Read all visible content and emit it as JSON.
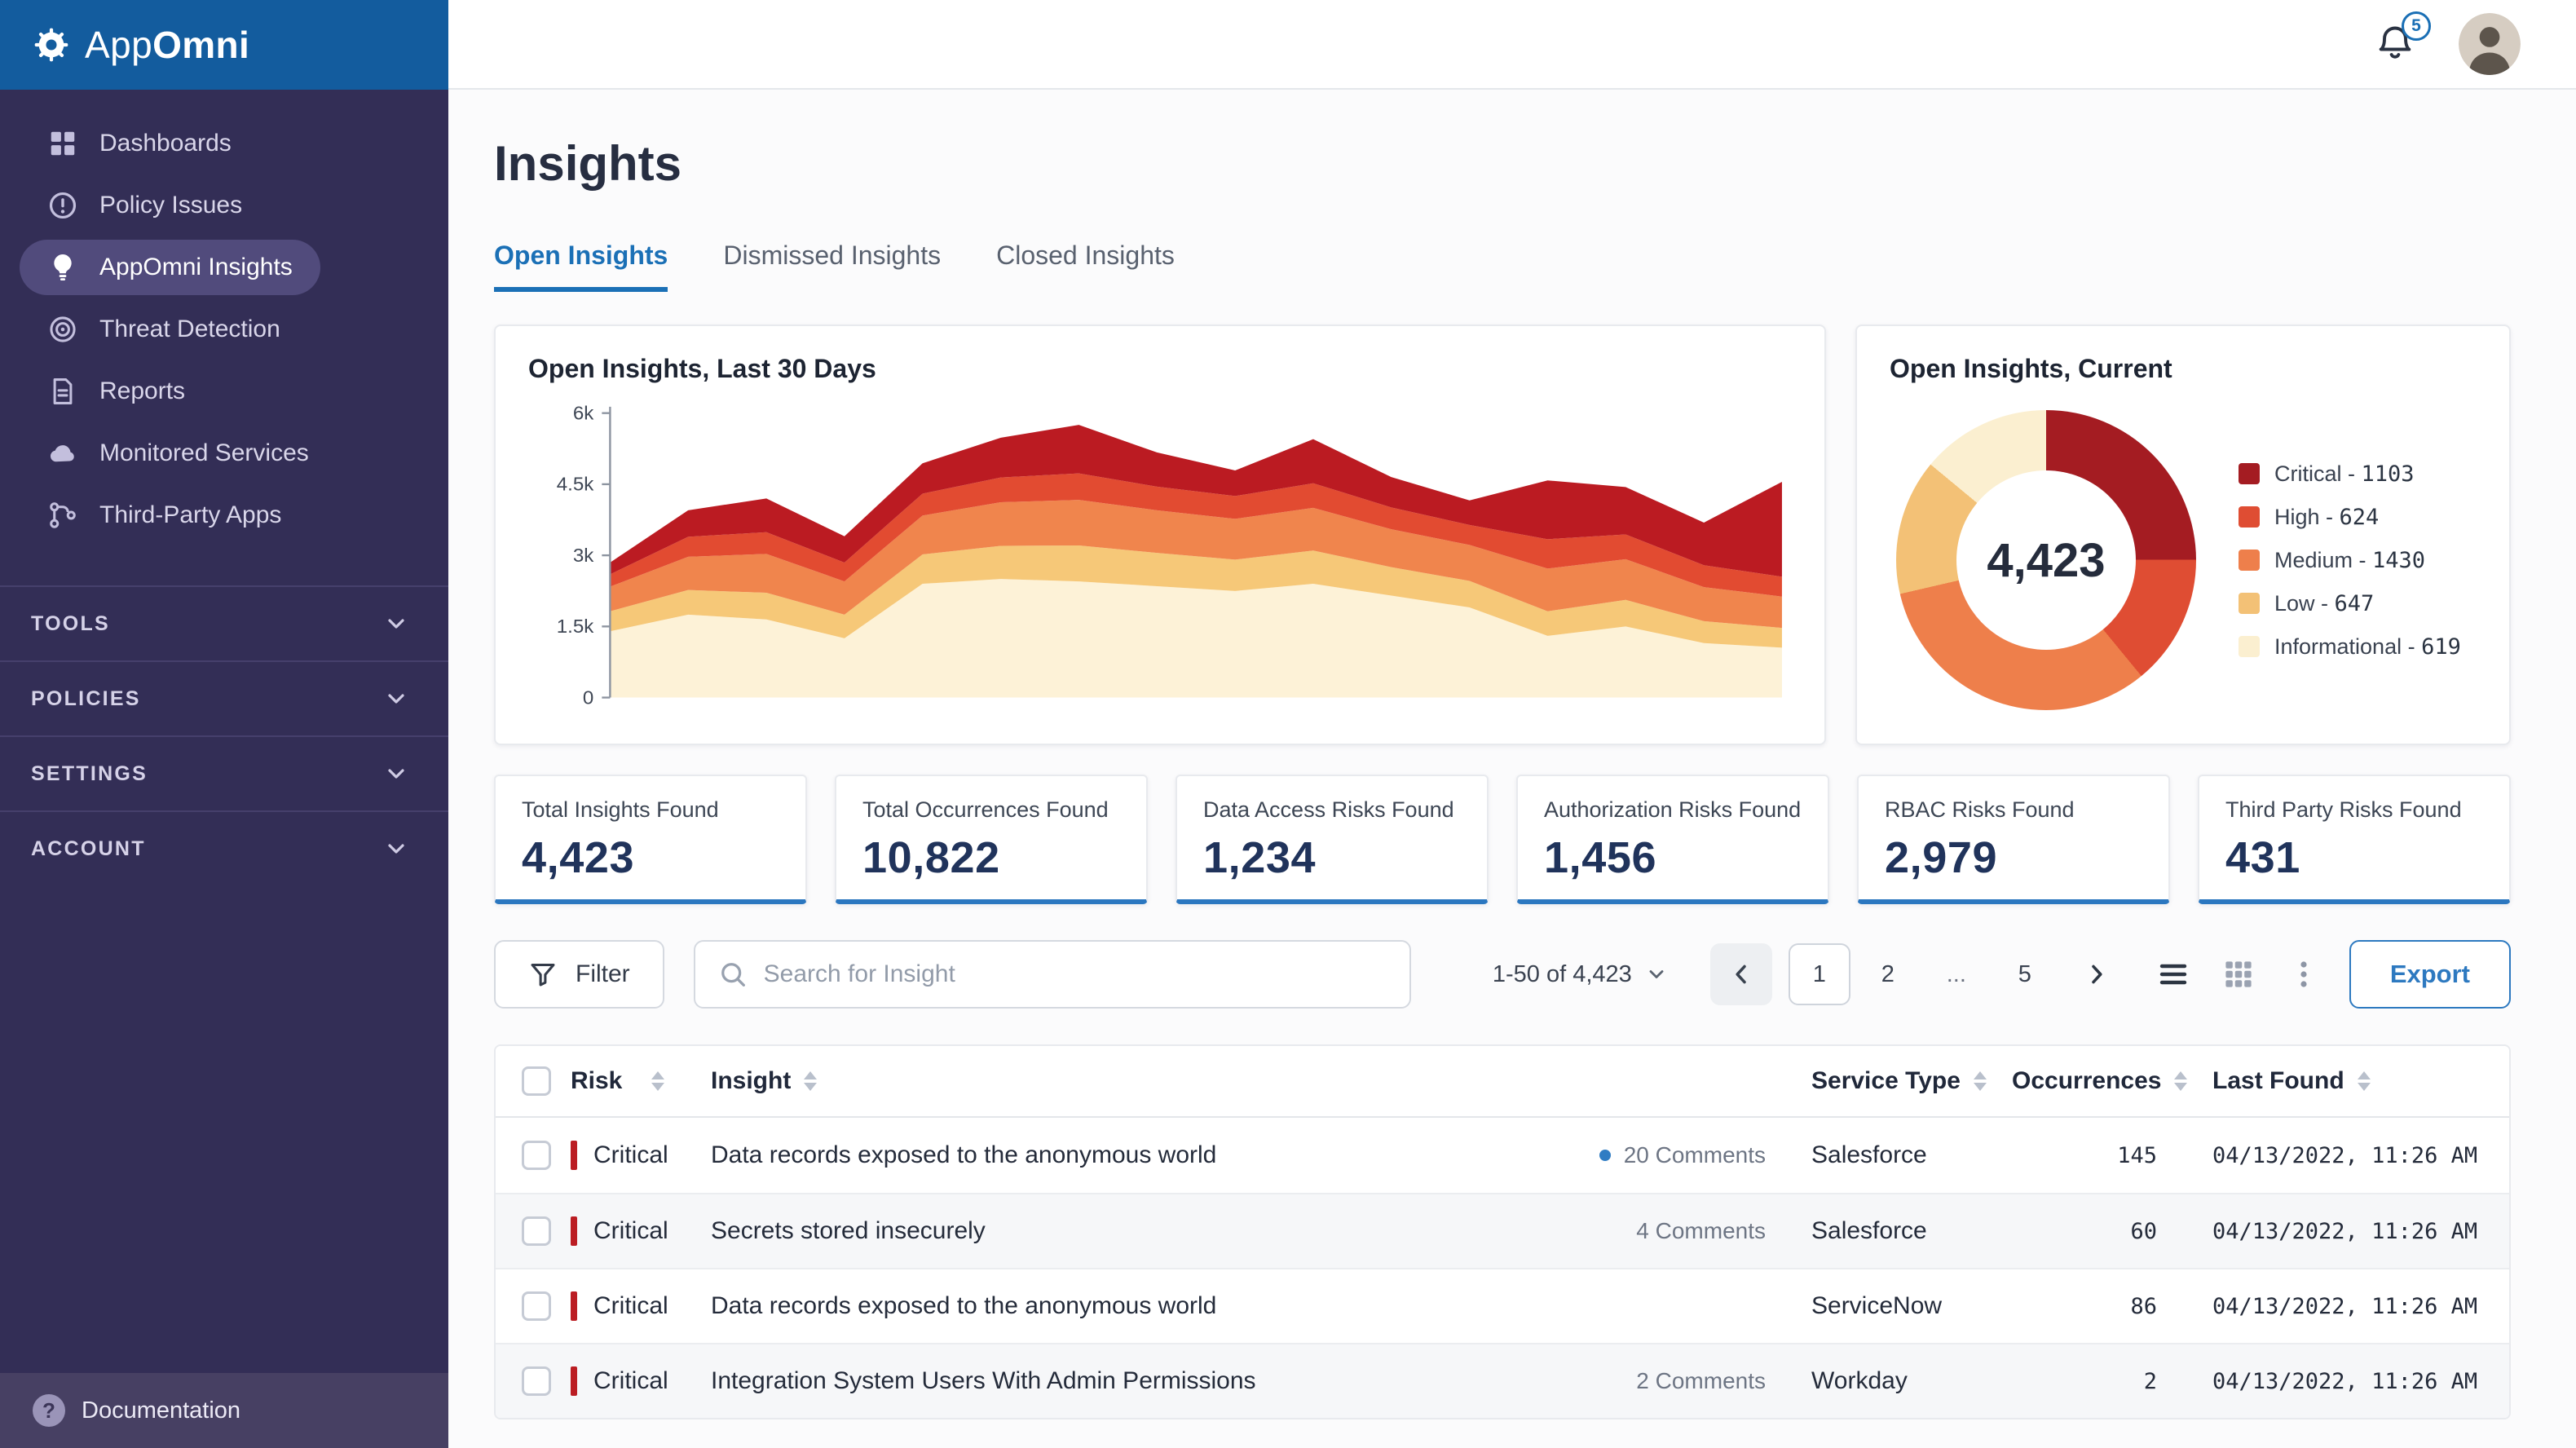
{
  "brand": {
    "app": "App",
    "omni": "Omni"
  },
  "sidebar": {
    "items": [
      {
        "label": "Dashboards",
        "icon": "dashboards",
        "active": false
      },
      {
        "label": "Policy Issues",
        "icon": "policy-issues",
        "active": false
      },
      {
        "label": "AppOmni Insights",
        "icon": "insights",
        "active": true
      },
      {
        "label": "Threat Detection",
        "icon": "threat-detection",
        "active": false
      },
      {
        "label": "Reports",
        "icon": "reports",
        "active": false
      },
      {
        "label": "Monitored Services",
        "icon": "monitored-services",
        "active": false
      },
      {
        "label": "Third-Party Apps",
        "icon": "third-party-apps",
        "active": false
      }
    ],
    "sections": [
      "TOOLS",
      "POLICIES",
      "SETTINGS",
      "ACCOUNT"
    ],
    "footer": "Documentation"
  },
  "topbar": {
    "notification_count": "5"
  },
  "page": {
    "title": "Insights",
    "tabs": [
      {
        "label": "Open Insights",
        "active": true
      },
      {
        "label": "Dismissed Insights",
        "active": false
      },
      {
        "label": "Closed Insights",
        "active": false
      }
    ]
  },
  "chart_data": [
    {
      "type": "area",
      "stacked": true,
      "title": "Open Insights, Last 30 Days",
      "xlabel": "",
      "ylabel": "",
      "grid": false,
      "legend_position": "none",
      "ylim": [
        0,
        6000
      ],
      "yticks": [
        {
          "v": 0,
          "label": "0"
        },
        {
          "v": 1500,
          "label": "1.5k"
        },
        {
          "v": 3000,
          "label": "3k"
        },
        {
          "v": 4500,
          "label": "4.5k"
        },
        {
          "v": 6000,
          "label": "6k"
        }
      ],
      "x": [
        1,
        3,
        5,
        7,
        9,
        11,
        13,
        15,
        17,
        19,
        21,
        23,
        25,
        27,
        29,
        30
      ],
      "series": [
        {
          "name": "Informational",
          "color": "#fdf2d7",
          "values": [
            1400,
            1750,
            1650,
            1250,
            2400,
            2500,
            2450,
            2350,
            2250,
            2400,
            2150,
            1900,
            1300,
            1500,
            1150,
            1050
          ]
        },
        {
          "name": "Low",
          "color": "#f6c878",
          "values": [
            420,
            520,
            560,
            500,
            620,
            700,
            760,
            700,
            660,
            700,
            600,
            560,
            520,
            560,
            460,
            420
          ]
        },
        {
          "name": "Medium",
          "color": "#f0854d",
          "values": [
            520,
            700,
            820,
            700,
            820,
            920,
            960,
            900,
            860,
            900,
            800,
            760,
            900,
            860,
            720,
            660
          ]
        },
        {
          "name": "High",
          "color": "#e24b31",
          "values": [
            260,
            420,
            460,
            400,
            460,
            520,
            560,
            500,
            480,
            520,
            460,
            420,
            620,
            520,
            460,
            420
          ]
        },
        {
          "name": "Critical",
          "color": "#bb1b22",
          "values": [
            250,
            560,
            710,
            550,
            640,
            840,
            1020,
            720,
            540,
            930,
            640,
            520,
            1240,
            1000,
            900,
            2000
          ]
        }
      ]
    },
    {
      "type": "donut",
      "title": "Open Insights, Current",
      "center_total": "4,423",
      "total": 4423,
      "legend_position": "right",
      "slices": [
        {
          "label": "Critical",
          "value": 1103,
          "color": "#a41c22"
        },
        {
          "label": "High",
          "value": 624,
          "color": "#df4d33"
        },
        {
          "label": "Medium",
          "value": 1430,
          "color": "#ee7f4b"
        },
        {
          "label": "Low",
          "value": 647,
          "color": "#f3c176"
        },
        {
          "label": "Informational",
          "value": 619,
          "color": "#fbefd0"
        }
      ]
    }
  ],
  "stats": [
    {
      "label": "Total Insights Found",
      "value": "4,423"
    },
    {
      "label": "Total Occurrences Found",
      "value": "10,822"
    },
    {
      "label": "Data Access Risks Found",
      "value": "1,234"
    },
    {
      "label": "Authorization Risks Found",
      "value": "1,456"
    },
    {
      "label": "RBAC Risks Found",
      "value": "2,979"
    },
    {
      "label": "Third Party Risks Found",
      "value": "431"
    }
  ],
  "toolbar": {
    "filter_label": "Filter",
    "search_placeholder": "Search for Insight",
    "search_value": "",
    "range_label": "1-50 of 4,423",
    "pages": [
      "1",
      "2",
      "...",
      "5"
    ],
    "active_page": "1",
    "view_modes": [
      "list",
      "grid",
      "more"
    ],
    "active_view": "list",
    "export_label": "Export"
  },
  "table": {
    "columns": [
      {
        "label": "Risk",
        "sortable": true
      },
      {
        "label": "Insight",
        "sortable": true
      },
      {
        "label": "",
        "sortable": false
      },
      {
        "label": "Service Type",
        "sortable": true
      },
      {
        "label": "Occurrences",
        "sortable": true
      },
      {
        "label": "Last Found",
        "sortable": true
      }
    ],
    "rows": [
      {
        "risk": "Critical",
        "insight": "Data records exposed to the anonymous world",
        "comments": "20 Comments",
        "unread": true,
        "service_type": "Salesforce",
        "occurrences": "145",
        "last_found": "04/13/2022, 11:26 AM"
      },
      {
        "risk": "Critical",
        "insight": "Secrets stored insecurely",
        "comments": "4 Comments",
        "unread": false,
        "service_type": "Salesforce",
        "occurrences": "60",
        "last_found": "04/13/2022, 11:26 AM"
      },
      {
        "risk": "Critical",
        "insight": "Data records exposed to the anonymous world",
        "comments": "",
        "unread": false,
        "service_type": "ServiceNow",
        "occurrences": "86",
        "last_found": "04/13/2022, 11:26 AM"
      },
      {
        "risk": "Critical",
        "insight": "Integration System Users With Admin Permissions",
        "comments": "2 Comments",
        "unread": false,
        "service_type": "Workday",
        "occurrences": "2",
        "last_found": "04/13/2022, 11:26 AM"
      }
    ]
  },
  "colors": {
    "accent_blue": "#1b70b6",
    "sidebar_bg": "#332e56",
    "brand_header_blue": "#135c9e",
    "critical_red": "#bb1d23"
  }
}
